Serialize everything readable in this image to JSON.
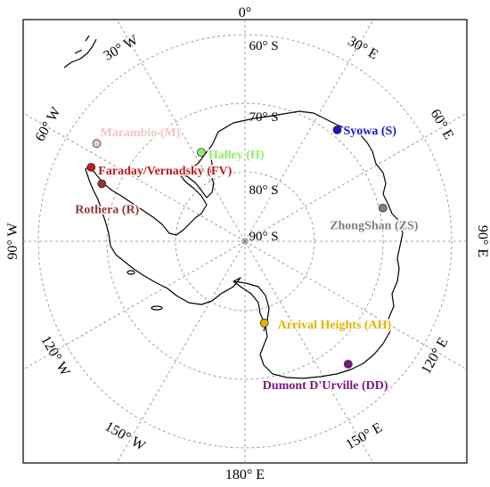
{
  "map": {
    "projection": "south-polar-stereographic",
    "center_label": "90° S",
    "latitude_labels": [
      "60° S",
      "70° S",
      "80° S",
      "90° S"
    ],
    "longitude_labels": {
      "top": "0°",
      "bottom": "180° E",
      "left": "90° W",
      "right": "90° E",
      "upper_left_30": "30° W",
      "upper_left_60": "60° W",
      "upper_right_30": "30° E",
      "upper_right_60": "60° E",
      "lower_left_120": "120° W",
      "lower_left_150": "150° W",
      "lower_right_120": "120° E",
      "lower_right_150": "150° E"
    }
  },
  "stations": [
    {
      "id": "syowa",
      "label": "Syowa (S)",
      "color": "#1515d6",
      "lat": -69.0,
      "lon": 39.6
    },
    {
      "id": "zhongshan",
      "label": "ZhongShan (ZS)",
      "color": "#7f7f7f",
      "lat": -69.4,
      "lon": 76.4
    },
    {
      "id": "halley",
      "label": "Halley (H)",
      "color": "#8ef06a",
      "lat": -75.6,
      "lon": -26.2
    },
    {
      "id": "marambio",
      "label": "Marambio (M)",
      "color": "#f2c4c4",
      "lat": -64.2,
      "lon": -56.6
    },
    {
      "id": "faraday",
      "label": "Faraday/Vernadsky (FV)",
      "color": "#c11b1b",
      "lat": -65.2,
      "lon": -64.3
    },
    {
      "id": "rothera",
      "label": "Rothera (R)",
      "color": "#8b3a2e",
      "lat": -67.6,
      "lon": -68.1
    },
    {
      "id": "arrival",
      "label": "Arrival Heights (AH)",
      "color": "#e0b400",
      "lat": -77.8,
      "lon": 166.7
    },
    {
      "id": "dumont",
      "label": "Dumont D'Urville (DD)",
      "color": "#7a1680",
      "lat": -66.7,
      "lon": 140.0
    }
  ]
}
